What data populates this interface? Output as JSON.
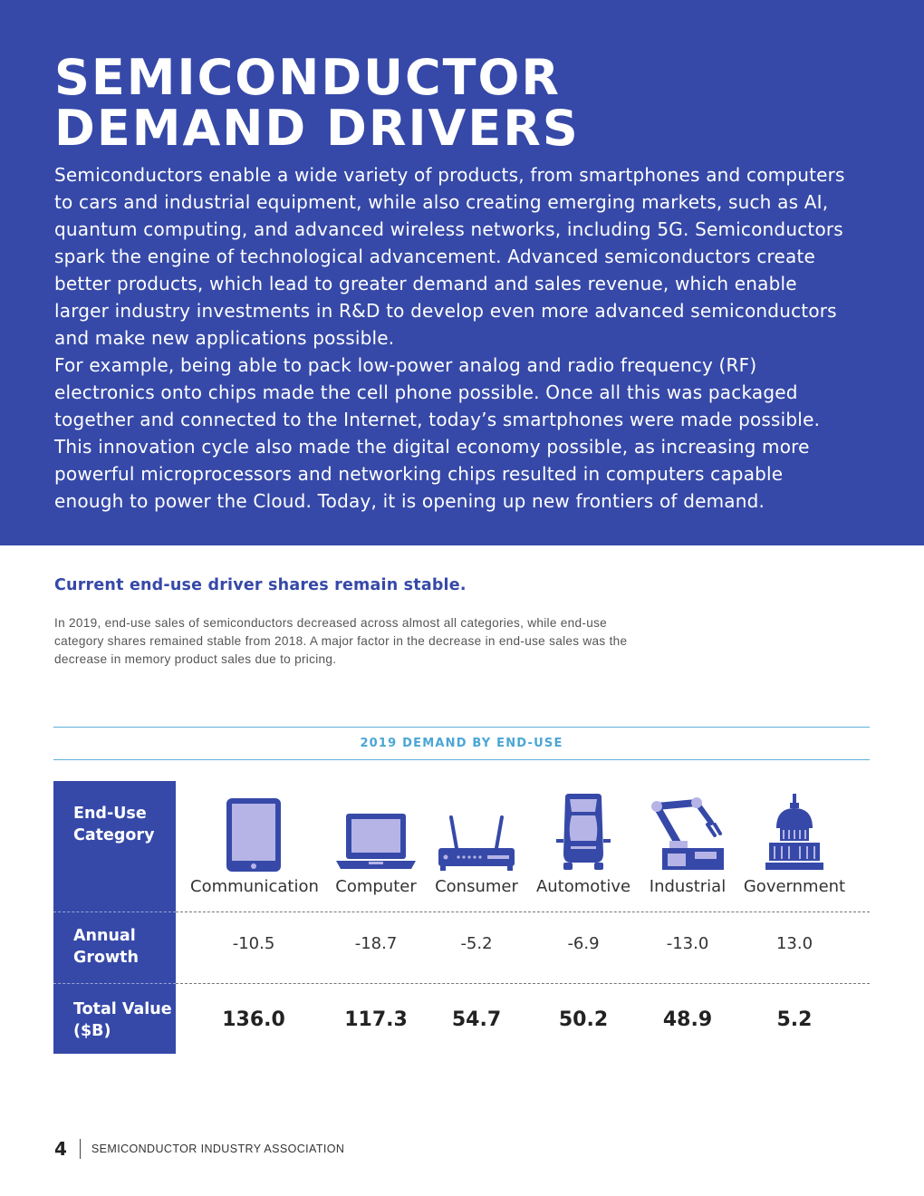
{
  "hero": {
    "title_line1": "SEMICONDUCTOR",
    "title_line2": "DEMAND DRIVERS",
    "paragraph1": "Semiconductors enable a wide variety of products, from smartphones and computers to cars and industrial equipment, while also creating emerging markets, such as AI, quantum computing, and advanced wireless networks, including 5G. Semiconductors spark the engine of technological advancement. Advanced semiconductors create better products, which lead to greater demand and sales revenue, which enable larger industry investments in R&D to develop even more advanced semiconductors and make new applications possible.",
    "paragraph2": "For example, being able to pack low-power analog and radio frequency (RF) electronics onto chips made the cell phone possible. Once all this was packaged together and connected to the Internet, today’s smartphones were made possible. This innovation cycle also made the digital economy possible, as increasing more powerful microprocessors and networking chips resulted in computers capable enough to power the Cloud. Today, it is opening up new frontiers of demand."
  },
  "section": {
    "heading": "Current end-use driver shares remain stable.",
    "body": "In 2019, end-use sales of semiconductors decreased across almost all categories, while end-use category shares remained stable from 2018. A major factor in the decrease in end-use sales was the decrease in memory product sales due to pricing."
  },
  "table": {
    "title": "2019 DEMAND BY END-USE",
    "row_labels": {
      "category": "End-Use Category",
      "growth": "Annual Growth",
      "total": "Total Value ($B)"
    },
    "columns": [
      {
        "category": "Communication",
        "icon": "tablet-icon",
        "growth": "-10.5",
        "total": "136.0"
      },
      {
        "category": "Computer",
        "icon": "laptop-icon",
        "growth": "-18.7",
        "total": "117.3"
      },
      {
        "category": "Consumer",
        "icon": "router-icon",
        "growth": "-5.2",
        "total": "54.7"
      },
      {
        "category": "Automotive",
        "icon": "car-icon",
        "growth": "-6.9",
        "total": "50.2"
      },
      {
        "category": "Industrial",
        "icon": "robot-arm-icon",
        "growth": "-13.0",
        "total": "48.9"
      },
      {
        "category": "Government",
        "icon": "capitol-icon",
        "growth": "13.0",
        "total": "5.2"
      }
    ]
  },
  "footer": {
    "page_number": "4",
    "organization": "SEMICONDUCTOR INDUSTRY ASSOCIATION"
  },
  "colors": {
    "brand_blue": "#3649a8",
    "accent_cyan": "#4aa6d6",
    "icon_light": "#b6b4e6"
  }
}
